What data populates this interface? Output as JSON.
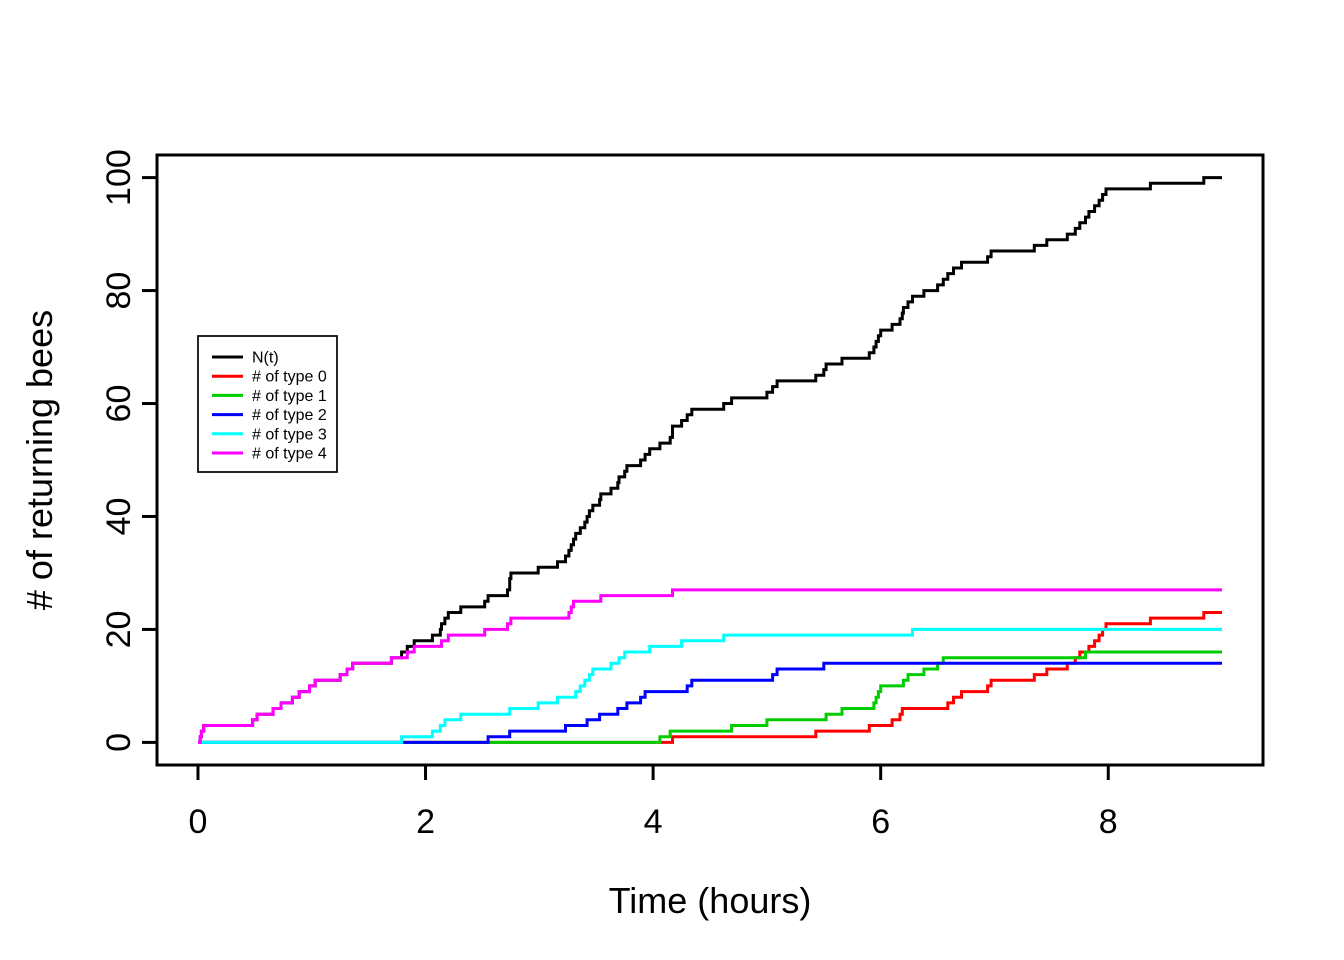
{
  "chart_data": {
    "type": "line",
    "subtype": "step-counting-process",
    "title": "",
    "xlabel": "Time (hours)",
    "ylabel": "# of returning bees",
    "xlim": [
      -0.36,
      9.36
    ],
    "ylim": [
      -4,
      104
    ],
    "x_ticks": [
      0,
      2,
      4,
      6,
      8
    ],
    "y_ticks": [
      0,
      20,
      40,
      60,
      80,
      100
    ],
    "grid": false,
    "data_t_start": 0,
    "data_t_end": 9.0,
    "legend_position": "upper-left-inside",
    "series": [
      {
        "name": "N(t)",
        "color": "#000000",
        "derived": "sum_of_all_type_series",
        "start_value": 0,
        "final_value": 100
      },
      {
        "name": "# of type 0",
        "color": "#FF0000",
        "start_value": 0,
        "final_value": 23,
        "jump_times": [
          4.17,
          5.43,
          5.9,
          6.1,
          6.17,
          6.19,
          6.59,
          6.64,
          6.71,
          6.94,
          6.97,
          7.35,
          7.46,
          7.64,
          7.71,
          7.75,
          7.83,
          7.88,
          7.92,
          7.95,
          7.98,
          8.37,
          8.84
        ]
      },
      {
        "name": "# of type 1",
        "color": "#00CD00",
        "start_value": 0,
        "final_value": 16,
        "jump_times": [
          4.06,
          4.15,
          4.69,
          5.0,
          5.52,
          5.66,
          5.94,
          5.96,
          5.98,
          6.0,
          6.2,
          6.24,
          6.38,
          6.5,
          6.55,
          7.8
        ]
      },
      {
        "name": "# of type 2",
        "color": "#0000FF",
        "start_value": 0,
        "final_value": 14,
        "jump_times": [
          2.55,
          2.74,
          3.23,
          3.42,
          3.53,
          3.69,
          3.77,
          3.89,
          3.93,
          4.3,
          4.34,
          5.05,
          5.09,
          5.5
        ]
      },
      {
        "name": "# of type 3",
        "color": "#00FFFF",
        "start_value": 0,
        "final_value": 20,
        "jump_times": [
          1.79,
          2.06,
          2.13,
          2.17,
          2.31,
          2.74,
          2.99,
          3.16,
          3.32,
          3.36,
          3.4,
          3.44,
          3.47,
          3.63,
          3.7,
          3.75,
          3.97,
          4.25,
          4.62,
          6.28
        ]
      },
      {
        "name": "# of type 4",
        "color": "#FF00FF",
        "start_value": 0,
        "final_value": 27,
        "jump_times": [
          0.02,
          0.03,
          0.05,
          0.48,
          0.52,
          0.66,
          0.73,
          0.83,
          0.89,
          0.98,
          1.03,
          1.25,
          1.31,
          1.36,
          1.7,
          1.84,
          1.9,
          2.14,
          2.2,
          2.52,
          2.72,
          2.75,
          3.26,
          3.28,
          3.3,
          3.54,
          4.17
        ]
      }
    ]
  }
}
